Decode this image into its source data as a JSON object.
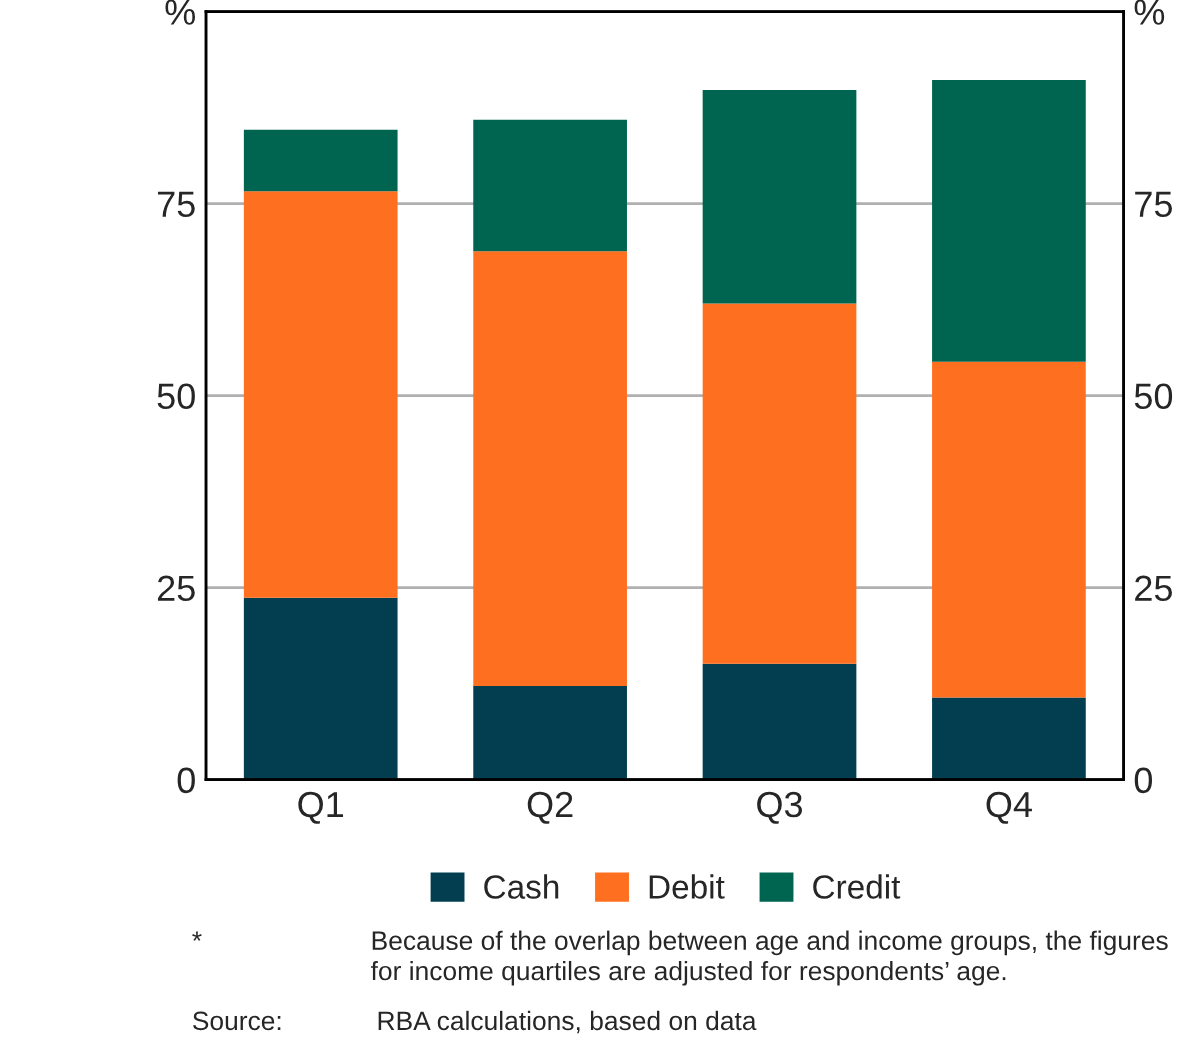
{
  "chart_data": {
    "type": "bar",
    "stacked": true,
    "categories": [
      "Q1",
      "Q2",
      "Q3",
      "Q4"
    ],
    "series": [
      {
        "name": "Cash",
        "color": "#023e50",
        "values": [
          23.7,
          12.2,
          15.1,
          10.7
        ]
      },
      {
        "name": "Debit",
        "color": "#ff6f20",
        "values": [
          52.9,
          56.6,
          46.9,
          43.7
        ]
      },
      {
        "name": "Credit",
        "color": "#006550",
        "values": [
          8.0,
          17.1,
          27.8,
          36.7
        ]
      }
    ],
    "ylim": [
      0,
      100
    ],
    "yticks": [
      0,
      25,
      50,
      75,
      {
        "value": 100,
        "label": "%"
      }
    ],
    "y2lim": [
      0,
      100
    ],
    "y2ticks": [
      0,
      25,
      50,
      75,
      {
        "value": 100,
        "label": "%"
      }
    ],
    "grid": "y",
    "legend": "bottom",
    "annotations": [
      "*",
      "Because of the overlap between age and income groups, the figures\nfor income quartiles are adjusted for respondents’ age.",
      "Source:",
      "RBA calculations, based on data"
    ]
  }
}
